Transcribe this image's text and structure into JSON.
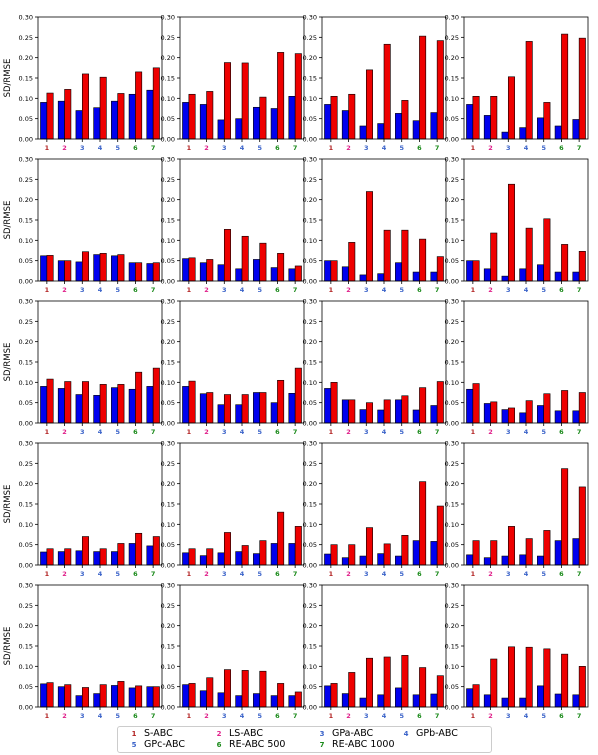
{
  "chart_data": {
    "type": "bar",
    "layout": {
      "rows": 5,
      "cols": 4
    },
    "ylabel": "SD/RMSE",
    "ylim": [
      0,
      0.3
    ],
    "yticks": [
      "0.00",
      "0.05",
      "0.10",
      "0.15",
      "0.20",
      "0.25",
      "0.30"
    ],
    "categories": [
      "1",
      "2",
      "3",
      "4",
      "5",
      "6",
      "7"
    ],
    "category_colors": [
      "#b22222",
      "#e0208a",
      "#3b63c9",
      "#3b63c9",
      "#3b63c9",
      "#1a8a1a",
      "#1a8a1a"
    ],
    "series_colors": [
      "#0000ee",
      "#ee0000"
    ],
    "panels": [
      {
        "series": [
          [
            0.09,
            0.093,
            0.07,
            0.077,
            0.093,
            0.11,
            0.12
          ],
          [
            0.113,
            0.122,
            0.16,
            0.152,
            0.112,
            0.165,
            0.175
          ]
        ]
      },
      {
        "series": [
          [
            0.09,
            0.085,
            0.047,
            0.05,
            0.078,
            0.075,
            0.105
          ],
          [
            0.11,
            0.117,
            0.188,
            0.187,
            0.103,
            0.213,
            0.21
          ]
        ]
      },
      {
        "series": [
          [
            0.085,
            0.07,
            0.032,
            0.038,
            0.063,
            0.045,
            0.065
          ],
          [
            0.105,
            0.11,
            0.17,
            0.233,
            0.095,
            0.253,
            0.242
          ]
        ]
      },
      {
        "series": [
          [
            0.085,
            0.058,
            0.017,
            0.028,
            0.052,
            0.032,
            0.048
          ],
          [
            0.105,
            0.105,
            0.153,
            0.24,
            0.09,
            0.258,
            0.248
          ]
        ]
      },
      {
        "series": [
          [
            0.062,
            0.05,
            0.047,
            0.065,
            0.062,
            0.045,
            0.043
          ],
          [
            0.063,
            0.05,
            0.072,
            0.068,
            0.065,
            0.045,
            0.045
          ]
        ]
      },
      {
        "series": [
          [
            0.055,
            0.045,
            0.04,
            0.03,
            0.053,
            0.033,
            0.03
          ],
          [
            0.057,
            0.053,
            0.127,
            0.11,
            0.093,
            0.068,
            0.037
          ]
        ]
      },
      {
        "series": [
          [
            0.05,
            0.035,
            0.015,
            0.018,
            0.045,
            0.022,
            0.022
          ],
          [
            0.05,
            0.095,
            0.22,
            0.125,
            0.125,
            0.103,
            0.06
          ]
        ]
      },
      {
        "series": [
          [
            0.05,
            0.03,
            0.012,
            0.03,
            0.04,
            0.022,
            0.022
          ],
          [
            0.05,
            0.118,
            0.238,
            0.13,
            0.153,
            0.09,
            0.073
          ]
        ]
      },
      {
        "series": [
          [
            0.09,
            0.085,
            0.07,
            0.068,
            0.087,
            0.083,
            0.09
          ],
          [
            0.108,
            0.102,
            0.102,
            0.095,
            0.095,
            0.125,
            0.135
          ]
        ]
      },
      {
        "series": [
          [
            0.09,
            0.072,
            0.045,
            0.045,
            0.075,
            0.05,
            0.073
          ],
          [
            0.103,
            0.075,
            0.07,
            0.07,
            0.075,
            0.105,
            0.135
          ]
        ]
      },
      {
        "series": [
          [
            0.085,
            0.057,
            0.033,
            0.032,
            0.057,
            0.032,
            0.043
          ],
          [
            0.1,
            0.057,
            0.05,
            0.057,
            0.067,
            0.087,
            0.102
          ]
        ]
      },
      {
        "series": [
          [
            0.083,
            0.048,
            0.033,
            0.025,
            0.043,
            0.03,
            0.03
          ],
          [
            0.097,
            0.052,
            0.037,
            0.055,
            0.072,
            0.08,
            0.075
          ]
        ]
      },
      {
        "series": [
          [
            0.032,
            0.033,
            0.035,
            0.033,
            0.033,
            0.053,
            0.047
          ],
          [
            0.04,
            0.04,
            0.07,
            0.04,
            0.053,
            0.078,
            0.07
          ]
        ]
      },
      {
        "series": [
          [
            0.03,
            0.023,
            0.03,
            0.033,
            0.028,
            0.053,
            0.053
          ],
          [
            0.04,
            0.04,
            0.08,
            0.048,
            0.06,
            0.13,
            0.095
          ]
        ]
      },
      {
        "series": [
          [
            0.027,
            0.018,
            0.022,
            0.028,
            0.022,
            0.06,
            0.058
          ],
          [
            0.05,
            0.05,
            0.092,
            0.052,
            0.073,
            0.205,
            0.145
          ]
        ]
      },
      {
        "series": [
          [
            0.025,
            0.018,
            0.022,
            0.025,
            0.022,
            0.06,
            0.065
          ],
          [
            0.06,
            0.06,
            0.095,
            0.065,
            0.085,
            0.237,
            0.192
          ]
        ]
      },
      {
        "series": [
          [
            0.057,
            0.05,
            0.028,
            0.033,
            0.053,
            0.047,
            0.05
          ],
          [
            0.06,
            0.055,
            0.048,
            0.055,
            0.063,
            0.052,
            0.05
          ]
        ]
      },
      {
        "series": [
          [
            0.055,
            0.04,
            0.035,
            0.028,
            0.033,
            0.028,
            0.028
          ],
          [
            0.058,
            0.072,
            0.092,
            0.09,
            0.088,
            0.058,
            0.037
          ]
        ]
      },
      {
        "series": [
          [
            0.052,
            0.033,
            0.022,
            0.03,
            0.047,
            0.03,
            0.032
          ],
          [
            0.058,
            0.085,
            0.12,
            0.123,
            0.127,
            0.097,
            0.077
          ]
        ]
      },
      {
        "series": [
          [
            0.045,
            0.03,
            0.022,
            0.022,
            0.052,
            0.032,
            0.03
          ],
          [
            0.055,
            0.118,
            0.148,
            0.147,
            0.143,
            0.13,
            0.1
          ]
        ]
      }
    ],
    "legend": [
      {
        "num": "1",
        "label": "S-ABC"
      },
      {
        "num": "2",
        "label": "LS-ABC"
      },
      {
        "num": "3",
        "label": "GPa-ABC"
      },
      {
        "num": "4",
        "label": "GPb-ABC"
      },
      {
        "num": "5",
        "label": "GPc-ABC"
      },
      {
        "num": "6",
        "label": "RE-ABC 500"
      },
      {
        "num": "7",
        "label": "RE-ABC 1000"
      }
    ]
  }
}
